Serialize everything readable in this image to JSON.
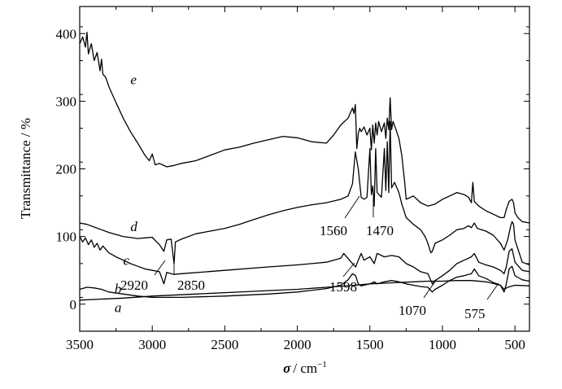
{
  "chart_data": {
    "type": "line",
    "xlabel_symbol": "σ",
    "xlabel_unit": "/ cm",
    "xlabel_exp": "−1",
    "ylabel": "Transmittance / %",
    "xlim": [
      3500,
      400
    ],
    "ylim": [
      -40,
      440
    ],
    "xticks": [
      3500,
      3000,
      2500,
      2000,
      1500,
      1000,
      500
    ],
    "yticks": [
      0,
      100,
      200,
      300,
      400
    ],
    "grid": false,
    "series": [
      {
        "name": "a",
        "points": [
          [
            3500,
            6
          ],
          [
            3200,
            9
          ],
          [
            3000,
            12
          ],
          [
            2700,
            15
          ],
          [
            2500,
            17
          ],
          [
            2200,
            20
          ],
          [
            2000,
            22
          ],
          [
            1800,
            25
          ],
          [
            1600,
            28
          ],
          [
            1500,
            30
          ],
          [
            1400,
            31
          ],
          [
            1300,
            32
          ],
          [
            1200,
            33
          ],
          [
            1100,
            34
          ],
          [
            1000,
            34
          ],
          [
            900,
            35
          ],
          [
            800,
            35
          ],
          [
            700,
            33
          ],
          [
            600,
            28
          ],
          [
            575,
            22
          ],
          [
            550,
            25
          ],
          [
            500,
            28
          ],
          [
            400,
            27
          ]
        ]
      },
      {
        "name": "b",
        "points": [
          [
            3500,
            22
          ],
          [
            3450,
            25
          ],
          [
            3400,
            24
          ],
          [
            3350,
            22
          ],
          [
            3300,
            18
          ],
          [
            3200,
            15
          ],
          [
            3100,
            12
          ],
          [
            3000,
            10
          ],
          [
            2800,
            10
          ],
          [
            2500,
            12
          ],
          [
            2200,
            15
          ],
          [
            2000,
            18
          ],
          [
            1800,
            23
          ],
          [
            1700,
            28
          ],
          [
            1650,
            36
          ],
          [
            1620,
            45
          ],
          [
            1598,
            42
          ],
          [
            1580,
            30
          ],
          [
            1560,
            27
          ],
          [
            1500,
            30
          ],
          [
            1470,
            33
          ],
          [
            1450,
            30
          ],
          [
            1400,
            33
          ],
          [
            1350,
            35
          ],
          [
            1300,
            33
          ],
          [
            1250,
            30
          ],
          [
            1200,
            28
          ],
          [
            1150,
            26
          ],
          [
            1100,
            25
          ],
          [
            1070,
            18
          ],
          [
            1050,
            22
          ],
          [
            1000,
            28
          ],
          [
            950,
            35
          ],
          [
            900,
            40
          ],
          [
            850,
            42
          ],
          [
            800,
            45
          ],
          [
            780,
            52
          ],
          [
            750,
            42
          ],
          [
            700,
            38
          ],
          [
            650,
            32
          ],
          [
            600,
            28
          ],
          [
            575,
            18
          ],
          [
            560,
            30
          ],
          [
            540,
            52
          ],
          [
            520,
            56
          ],
          [
            500,
            42
          ],
          [
            450,
            36
          ],
          [
            400,
            34
          ]
        ]
      },
      {
        "name": "c",
        "points": [
          [
            3500,
            100
          ],
          [
            3480,
            92
          ],
          [
            3460,
            98
          ],
          [
            3440,
            88
          ],
          [
            3420,
            95
          ],
          [
            3400,
            84
          ],
          [
            3380,
            90
          ],
          [
            3360,
            80
          ],
          [
            3340,
            86
          ],
          [
            3300,
            76
          ],
          [
            3250,
            70
          ],
          [
            3200,
            65
          ],
          [
            3150,
            60
          ],
          [
            3100,
            56
          ],
          [
            3050,
            52
          ],
          [
            3000,
            50
          ],
          [
            2950,
            48
          ],
          [
            2920,
            30
          ],
          [
            2900,
            47
          ],
          [
            2850,
            44
          ],
          [
            2800,
            45
          ],
          [
            2500,
            50
          ],
          [
            2200,
            55
          ],
          [
            2000,
            58
          ],
          [
            1900,
            60
          ],
          [
            1800,
            62
          ],
          [
            1700,
            68
          ],
          [
            1680,
            75
          ],
          [
            1660,
            70
          ],
          [
            1620,
            60
          ],
          [
            1598,
            55
          ],
          [
            1580,
            65
          ],
          [
            1560,
            75
          ],
          [
            1540,
            65
          ],
          [
            1500,
            70
          ],
          [
            1470,
            60
          ],
          [
            1450,
            75
          ],
          [
            1400,
            70
          ],
          [
            1350,
            72
          ],
          [
            1300,
            70
          ],
          [
            1250,
            60
          ],
          [
            1200,
            55
          ],
          [
            1150,
            48
          ],
          [
            1100,
            45
          ],
          [
            1070,
            30
          ],
          [
            1050,
            35
          ],
          [
            1000,
            42
          ],
          [
            950,
            50
          ],
          [
            900,
            60
          ],
          [
            850,
            65
          ],
          [
            800,
            70
          ],
          [
            780,
            75
          ],
          [
            750,
            62
          ],
          [
            700,
            58
          ],
          [
            650,
            55
          ],
          [
            600,
            50
          ],
          [
            575,
            45
          ],
          [
            560,
            55
          ],
          [
            540,
            78
          ],
          [
            520,
            82
          ],
          [
            500,
            62
          ],
          [
            450,
            50
          ],
          [
            400,
            48
          ]
        ]
      },
      {
        "name": "d",
        "points": [
          [
            3500,
            120
          ],
          [
            3450,
            118
          ],
          [
            3400,
            114
          ],
          [
            3350,
            110
          ],
          [
            3300,
            106
          ],
          [
            3200,
            100
          ],
          [
            3100,
            97
          ],
          [
            3050,
            98
          ],
          [
            3000,
            99
          ],
          [
            2970,
            92
          ],
          [
            2950,
            88
          ],
          [
            2920,
            78
          ],
          [
            2900,
            95
          ],
          [
            2870,
            96
          ],
          [
            2850,
            60
          ],
          [
            2840,
            92
          ],
          [
            2800,
            96
          ],
          [
            2700,
            104
          ],
          [
            2600,
            108
          ],
          [
            2500,
            112
          ],
          [
            2400,
            118
          ],
          [
            2300,
            125
          ],
          [
            2200,
            132
          ],
          [
            2100,
            138
          ],
          [
            2000,
            143
          ],
          [
            1900,
            147
          ],
          [
            1800,
            150
          ],
          [
            1700,
            155
          ],
          [
            1650,
            160
          ],
          [
            1620,
            178
          ],
          [
            1600,
            225
          ],
          [
            1580,
            200
          ],
          [
            1560,
            158
          ],
          [
            1540,
            155
          ],
          [
            1520,
            158
          ],
          [
            1500,
            230
          ],
          [
            1490,
            162
          ],
          [
            1480,
            175
          ],
          [
            1470,
            145
          ],
          [
            1460,
            230
          ],
          [
            1450,
            165
          ],
          [
            1420,
            158
          ],
          [
            1400,
            230
          ],
          [
            1390,
            168
          ],
          [
            1380,
            240
          ],
          [
            1370,
            165
          ],
          [
            1360,
            270
          ],
          [
            1350,
            172
          ],
          [
            1330,
            180
          ],
          [
            1300,
            165
          ],
          [
            1280,
            148
          ],
          [
            1250,
            128
          ],
          [
            1200,
            118
          ],
          [
            1150,
            110
          ],
          [
            1120,
            100
          ],
          [
            1100,
            90
          ],
          [
            1080,
            76
          ],
          [
            1070,
            78
          ],
          [
            1050,
            90
          ],
          [
            1000,
            95
          ],
          [
            950,
            102
          ],
          [
            900,
            110
          ],
          [
            850,
            112
          ],
          [
            820,
            116
          ],
          [
            800,
            113
          ],
          [
            780,
            120
          ],
          [
            760,
            112
          ],
          [
            700,
            108
          ],
          [
            650,
            102
          ],
          [
            600,
            90
          ],
          [
            575,
            80
          ],
          [
            550,
            95
          ],
          [
            530,
            115
          ],
          [
            520,
            122
          ],
          [
            510,
            118
          ],
          [
            500,
            95
          ],
          [
            450,
            62
          ],
          [
            400,
            58
          ]
        ]
      },
      {
        "name": "e",
        "points": [
          [
            3500,
            385
          ],
          [
            3480,
            395
          ],
          [
            3460,
            380
          ],
          [
            3450,
            402
          ],
          [
            3440,
            370
          ],
          [
            3420,
            385
          ],
          [
            3400,
            360
          ],
          [
            3380,
            372
          ],
          [
            3360,
            345
          ],
          [
            3350,
            362
          ],
          [
            3340,
            340
          ],
          [
            3320,
            335
          ],
          [
            3300,
            322
          ],
          [
            3250,
            298
          ],
          [
            3200,
            275
          ],
          [
            3150,
            255
          ],
          [
            3100,
            238
          ],
          [
            3050,
            220
          ],
          [
            3020,
            212
          ],
          [
            3000,
            222
          ],
          [
            2980,
            206
          ],
          [
            2950,
            208
          ],
          [
            2900,
            203
          ],
          [
            2850,
            205
          ],
          [
            2800,
            208
          ],
          [
            2700,
            212
          ],
          [
            2600,
            220
          ],
          [
            2500,
            228
          ],
          [
            2400,
            232
          ],
          [
            2300,
            238
          ],
          [
            2200,
            243
          ],
          [
            2100,
            248
          ],
          [
            2000,
            246
          ],
          [
            1900,
            240
          ],
          [
            1800,
            238
          ],
          [
            1750,
            250
          ],
          [
            1700,
            265
          ],
          [
            1650,
            275
          ],
          [
            1620,
            290
          ],
          [
            1610,
            282
          ],
          [
            1600,
            295
          ],
          [
            1590,
            230
          ],
          [
            1580,
            252
          ],
          [
            1570,
            260
          ],
          [
            1560,
            255
          ],
          [
            1540,
            262
          ],
          [
            1520,
            250
          ],
          [
            1500,
            260
          ],
          [
            1490,
            228
          ],
          [
            1480,
            265
          ],
          [
            1470,
            238
          ],
          [
            1460,
            268
          ],
          [
            1450,
            250
          ],
          [
            1440,
            270
          ],
          [
            1420,
            255
          ],
          [
            1400,
            268
          ],
          [
            1390,
            245
          ],
          [
            1380,
            275
          ],
          [
            1370,
            258
          ],
          [
            1360,
            305
          ],
          [
            1350,
            258
          ],
          [
            1340,
            270
          ],
          [
            1320,
            258
          ],
          [
            1300,
            245
          ],
          [
            1280,
            220
          ],
          [
            1260,
            180
          ],
          [
            1250,
            155
          ],
          [
            1200,
            160
          ],
          [
            1150,
            150
          ],
          [
            1100,
            145
          ],
          [
            1050,
            148
          ],
          [
            1000,
            155
          ],
          [
            950,
            160
          ],
          [
            900,
            165
          ],
          [
            850,
            162
          ],
          [
            820,
            158
          ],
          [
            800,
            150
          ],
          [
            790,
            180
          ],
          [
            780,
            152
          ],
          [
            750,
            145
          ],
          [
            700,
            138
          ],
          [
            650,
            133
          ],
          [
            600,
            128
          ],
          [
            575,
            128
          ],
          [
            560,
            140
          ],
          [
            540,
            152
          ],
          [
            520,
            155
          ],
          [
            510,
            150
          ],
          [
            500,
            135
          ],
          [
            480,
            128
          ],
          [
            450,
            122
          ],
          [
            400,
            120
          ]
        ]
      }
    ],
    "annotations": [
      {
        "text": "2920"
      },
      {
        "text": "2850"
      },
      {
        "text": "1560"
      },
      {
        "text": "1470"
      },
      {
        "text": "1598"
      },
      {
        "text": "1070"
      },
      {
        "text": "575"
      }
    ]
  }
}
